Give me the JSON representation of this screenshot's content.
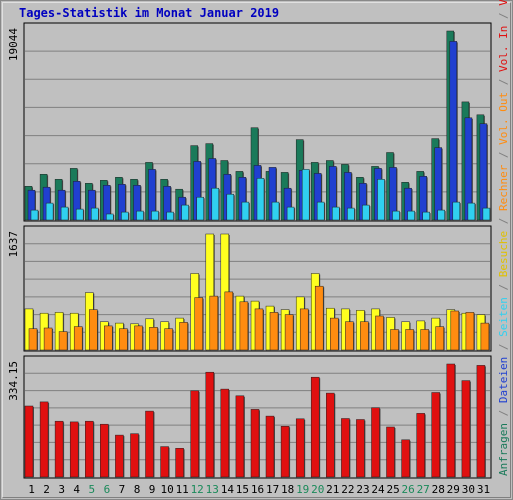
{
  "chart_data": {
    "type": "bar",
    "title": "Tages-Statistik im Monat Januar 2019",
    "categories": [
      "1",
      "2",
      "3",
      "4",
      "5",
      "6",
      "7",
      "8",
      "9",
      "10",
      "11",
      "12",
      "13",
      "14",
      "15",
      "16",
      "17",
      "18",
      "19",
      "20",
      "21",
      "22",
      "23",
      "24",
      "25",
      "26",
      "27",
      "28",
      "29",
      "30",
      "31"
    ],
    "weekend_days": [
      "5",
      "6",
      "12",
      "13",
      "19",
      "20",
      "26",
      "27"
    ],
    "panels": [
      {
        "id": "top",
        "ymax_label": "19044",
        "ymax": 19044,
        "series": [
          {
            "name": "Anfragen",
            "color": "#1a7a5a",
            "values": [
              3400,
              4600,
              4100,
              5200,
              3700,
              4000,
              4300,
              4100,
              5800,
              4100,
              3100,
              7500,
              7700,
              6000,
              4900,
              9300,
              4900,
              4800,
              8100,
              5800,
              6000,
              5600,
              4300,
              5400,
              6800,
              3800,
              4900,
              8200,
              19044,
              11900,
              10600
            ]
          },
          {
            "name": "Dateien",
            "color": "#2040d0",
            "values": [
              3000,
              3300,
              3000,
              3900,
              3000,
              3500,
              3600,
              3500,
              5100,
              3400,
              2300,
              5900,
              6200,
              4600,
              4300,
              5500,
              5300,
              3200,
              5000,
              4700,
              5400,
              4800,
              3700,
              5200,
              5300,
              3200,
              4400,
              7300,
              18000,
              10300,
              9700
            ]
          },
          {
            "name": "Seiten",
            "color": "#30d0f0",
            "values": [
              1000,
              1700,
              1300,
              1100,
              1200,
              600,
              800,
              900,
              900,
              800,
              1500,
              2300,
              3200,
              2600,
              1800,
              4200,
              1800,
              1300,
              5100,
              1800,
              1300,
              1200,
              1500,
              4100,
              900,
              900,
              800,
              1000,
              1800,
              1700,
              1200
            ]
          }
        ]
      },
      {
        "id": "middle",
        "ymax_label": "1637",
        "ymax": 1637,
        "series": [
          {
            "name": "Besuche",
            "color": "#ffff20",
            "values": [
              580,
              520,
              530,
              520,
              810,
              400,
              380,
              370,
              440,
              400,
              450,
              1080,
              1637,
              1637,
              760,
              690,
              620,
              570,
              750,
              1080,
              590,
              580,
              560,
              580,
              460,
              400,
              410,
              450,
              570,
              520,
              500
            ]
          },
          {
            "name": "Rechner",
            "color": "#ff8c10",
            "values": [
              300,
              310,
              260,
              330,
              570,
              340,
              300,
              340,
              320,
              300,
              390,
              740,
              760,
              820,
              680,
              580,
              530,
              500,
              580,
              900,
              450,
              400,
              400,
              480,
              290,
              290,
              290,
              330,
              550,
              530,
              380
            ]
          }
        ]
      },
      {
        "id": "bottom",
        "ymax_label": "334.15",
        "ymax": 334.15,
        "series": [
          {
            "name": "Volumen",
            "color": "#e01010",
            "values": [
              210,
              222,
              165,
              163,
              165,
              156,
              124,
              128,
              195,
              90,
              85,
              255,
              310,
              260,
              240,
              200,
              180,
              150,
              172,
              295,
              248,
              173,
              170,
              205,
              148,
              110,
              188,
              250,
              334.15,
              285,
              330
            ]
          }
        ]
      }
    ],
    "legend_right": {
      "top": [
        {
          "text": "Anfragen",
          "color": "#1a7a5a"
        },
        {
          "text": " / ",
          "color": "#808080"
        },
        {
          "text": "Dateien",
          "color": "#2040d0"
        },
        {
          "text": " / ",
          "color": "#808080"
        },
        {
          "text": "Seiten",
          "color": "#30d0f0"
        },
        {
          "text": " / ",
          "color": "#808080"
        },
        {
          "text": "Besuche",
          "color": "#e0c000"
        },
        {
          "text": " / ",
          "color": "#808080"
        },
        {
          "text": "Rechner",
          "color": "#ff8c10"
        },
        {
          "text": " / ",
          "color": "#808080"
        },
        {
          "text": "Vol. Out",
          "color": "#ff8c10"
        },
        {
          "text": " / ",
          "color": "#808080"
        },
        {
          "text": "Vol. In",
          "color": "#e01010"
        },
        {
          "text": " / ",
          "color": "#808080"
        },
        {
          "text": "Volumen",
          "color": "#e01010"
        }
      ]
    },
    "colors": {
      "background": "#c0c0c0",
      "plot_bg": "#c0c0c0",
      "grid": "#808080",
      "title": "#0000c0",
      "weekday_label": "#000000",
      "weekend_label": "#1a8a5a"
    }
  }
}
